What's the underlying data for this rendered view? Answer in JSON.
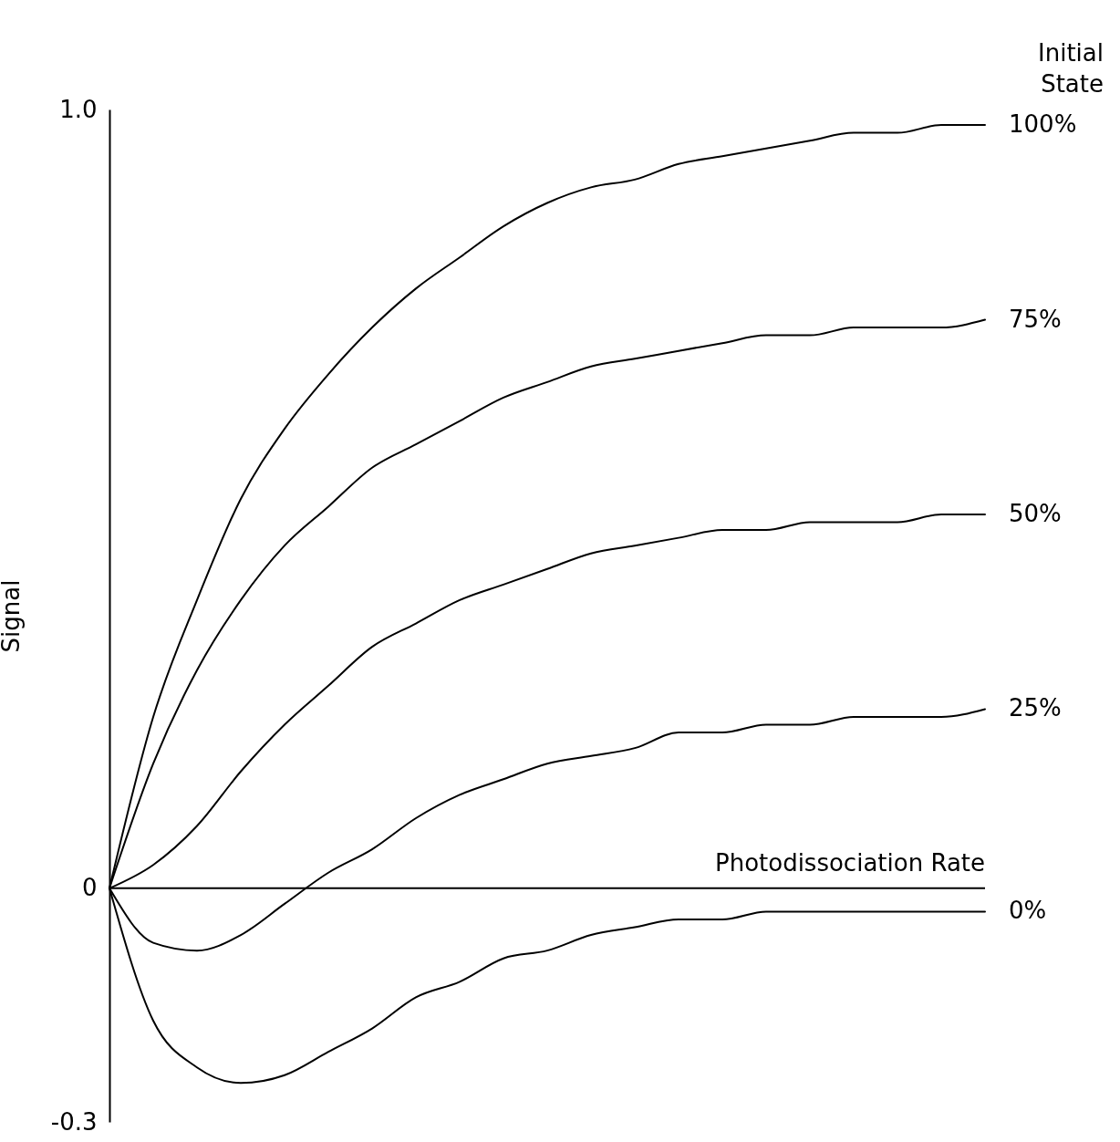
{
  "chart_data": {
    "type": "line",
    "ylabel": "Signal",
    "legend_title": "Initial State",
    "categories": [
      null,
      null,
      null,
      null,
      null,
      null,
      null,
      null,
      null,
      null,
      null,
      null,
      null,
      null,
      null,
      null,
      null,
      null,
      null,
      null,
      null
    ],
    "series": [
      {
        "name": "100%",
        "color": "#000000",
        "values": [
          0,
          0.22,
          0.37,
          0.5,
          0.59,
          0.66,
          0.72,
          0.77,
          0.81,
          0.85,
          0.88,
          0.9,
          0.91,
          0.93,
          0.94,
          0.95,
          0.96,
          0.97,
          0.97,
          0.98,
          0.98
        ]
      },
      {
        "name": "75%",
        "color": "#000000",
        "values": [
          0,
          0.16,
          0.28,
          0.37,
          0.44,
          0.49,
          0.54,
          0.57,
          0.6,
          0.63,
          0.65,
          0.67,
          0.68,
          0.69,
          0.7,
          0.71,
          0.71,
          0.72,
          0.72,
          0.72,
          0.73
        ]
      },
      {
        "name": "50%",
        "color": "#000000",
        "values": [
          0,
          0.03,
          0.08,
          0.15,
          0.21,
          0.26,
          0.31,
          0.34,
          0.37,
          0.39,
          0.41,
          0.43,
          0.44,
          0.45,
          0.46,
          0.46,
          0.47,
          0.47,
          0.47,
          0.48,
          0.48
        ]
      },
      {
        "name": "25%",
        "color": "#000000",
        "values": [
          0,
          -0.07,
          -0.08,
          -0.06,
          -0.02,
          0.02,
          0.05,
          0.09,
          0.12,
          0.14,
          0.16,
          0.17,
          0.18,
          0.2,
          0.2,
          0.21,
          0.21,
          0.22,
          0.22,
          0.22,
          0.23
        ]
      },
      {
        "name": "0%",
        "color": "#000000",
        "values": [
          0,
          -0.17,
          -0.23,
          -0.25,
          -0.24,
          -0.21,
          -0.18,
          -0.14,
          -0.12,
          -0.09,
          -0.08,
          -0.06,
          -0.05,
          -0.04,
          -0.04,
          -0.03,
          -0.03,
          -0.03,
          -0.03,
          -0.03,
          -0.03
        ]
      }
    ],
    "ylim": [
      -0.3,
      1.0
    ],
    "yticks": [
      -0.3,
      0,
      {
        "value": 1,
        "label": "1.0"
      }
    ],
    "grid": false,
    "ref_lines": [
      {
        "axis": "y",
        "value": 0,
        "label": "Photodissociation Rate"
      }
    ]
  }
}
